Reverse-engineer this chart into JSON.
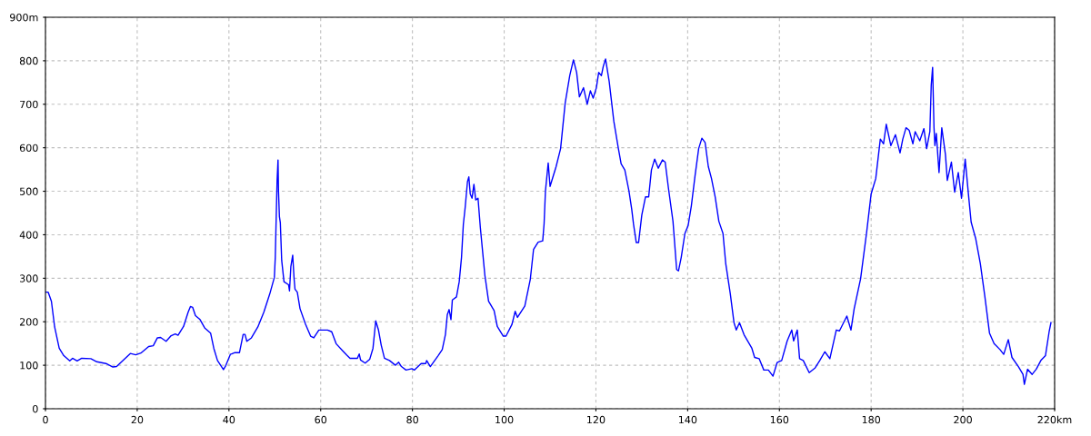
{
  "chart_data": {
    "type": "line",
    "x": [
      0.1,
      0.6,
      1.3,
      2.0,
      3.0,
      4.0,
      5.3,
      5.9,
      6.9,
      7.9,
      9.9,
      11.2,
      12.2,
      13.2,
      14.7,
      15.5,
      18.5,
      19.7,
      20.8,
      22.5,
      23.5,
      24.4,
      25.1,
      26.3,
      27.4,
      28.3,
      28.9,
      30.1,
      31.1,
      31.6,
      32.1,
      32.7,
      33.7,
      34.7,
      36.0,
      36.7,
      37.5,
      38.8,
      39.3,
      40.3,
      41.3,
      42.3,
      43.1,
      43.5,
      43.9,
      44.9,
      46.3,
      47.6,
      48.9,
      49.9,
      50.1,
      50.3,
      50.5,
      50.7,
      50.8,
      51.0,
      51.2,
      51.5,
      52.0,
      53.0,
      53.2,
      53.5,
      53.9,
      54.2,
      54.4,
      54.9,
      55.5,
      56.7,
      57.8,
      58.5,
      59.6,
      61.5,
      62.4,
      63.4,
      64.8,
      65.7,
      66.4,
      68.0,
      68.4,
      68.7,
      69.7,
      70.7,
      71.4,
      72.0,
      72.6,
      73.2,
      73.9,
      75.0,
      76.3,
      77.0,
      77.6,
      78.6,
      79.9,
      80.4,
      81.9,
      82.9,
      83.1,
      83.9,
      85.6,
      86.5,
      87.2,
      87.6,
      88.0,
      88.4,
      88.7,
      89.6,
      90.2,
      90.7,
      91.1,
      91.5,
      92.0,
      92.3,
      92.6,
      93.0,
      93.4,
      93.8,
      94.3,
      94.8,
      95.8,
      96.6,
      97.8,
      98.5,
      99.8,
      100.4,
      101.7,
      102.4,
      102.9,
      104.5,
      105.7,
      106.4,
      107.4,
      108.4,
      108.7,
      109.0,
      109.6,
      110.0,
      111.3,
      112.3,
      113.3,
      114.3,
      115.1,
      115.8,
      116.4,
      117.3,
      118.1,
      118.8,
      119.4,
      120.1,
      120.6,
      121.2,
      121.6,
      122.1,
      122.9,
      123.9,
      124.9,
      125.5,
      126.3,
      127.2,
      127.8,
      128.2,
      128.8,
      129.3,
      130.0,
      130.8,
      131.5,
      132.1,
      132.8,
      133.6,
      134.5,
      135.1,
      135.8,
      136.8,
      137.6,
      138.0,
      138.6,
      139.4,
      140.1,
      140.8,
      141.6,
      142.4,
      143.1,
      143.8,
      144.5,
      145.2,
      146.0,
      146.8,
      147.7,
      148.3,
      149.3,
      150.1,
      150.6,
      151.3,
      152.3,
      154.0,
      154.6,
      155.6,
      156.6,
      157.6,
      158.6,
      159.5,
      160.5,
      161.7,
      162.7,
      163.1,
      163.9,
      164.4,
      165.2,
      166.5,
      167.8,
      168.8,
      169.9,
      171.0,
      172.4,
      173.1,
      174.7,
      175.6,
      176.3,
      177.7,
      179.0,
      180.0,
      181.0,
      182.0,
      182.7,
      183.3,
      184.3,
      185.3,
      186.3,
      186.9,
      187.6,
      188.3,
      189.1,
      189.6,
      190.6,
      191.5,
      192.1,
      192.8,
      193.1,
      193.4,
      193.7,
      193.9,
      194.2,
      194.8,
      195.4,
      196.2,
      196.6,
      197.5,
      198.2,
      199.0,
      199.7,
      200.5,
      201.2,
      201.8,
      202.8,
      203.8,
      204.8,
      205.8,
      206.8,
      208.1,
      208.9,
      209.9,
      210.7,
      212.1,
      213.1,
      213.4,
      214.1,
      215.1,
      216.0,
      217.0,
      218.0,
      218.8,
      219.2
    ],
    "series": [
      {
        "color": "#0000ff",
        "values": [
          268,
          268,
          247,
          188,
          139,
          122,
          110,
          116,
          110,
          116,
          115,
          108,
          106,
          104,
          96,
          97,
          127,
          124,
          128,
          143,
          145,
          163,
          164,
          155,
          168,
          172,
          169,
          189,
          222,
          235,
          233,
          214,
          205,
          186,
          174,
          139,
          111,
          90,
          99,
          125,
          129,
          129,
          171,
          171,
          155,
          163,
          188,
          222,
          264,
          302,
          348,
          438,
          525,
          572,
          501,
          442,
          428,
          341,
          292,
          285,
          271,
          327,
          353,
          299,
          275,
          268,
          230,
          194,
          167,
          163,
          181,
          181,
          177,
          149,
          133,
          123,
          116,
          116,
          126,
          112,
          105,
          114,
          139,
          202,
          181,
          146,
          116,
          111,
          100,
          107,
          97,
          89,
          92,
          89,
          104,
          104,
          111,
          97,
          122,
          136,
          171,
          216,
          228,
          205,
          250,
          257,
          292,
          348,
          424,
          463,
          522,
          533,
          494,
          484,
          516,
          480,
          484,
          417,
          306,
          247,
          226,
          189,
          167,
          167,
          194,
          224,
          210,
          236,
          298,
          366,
          383,
          386,
          425,
          501,
          565,
          511,
          556,
          598,
          703,
          766,
          802,
          773,
          717,
          738,
          700,
          731,
          714,
          738,
          773,
          766,
          787,
          804,
          752,
          661,
          598,
          563,
          549,
          501,
          459,
          424,
          382,
          382,
          445,
          487,
          487,
          549,
          574,
          553,
          572,
          567,
          508,
          431,
          320,
          317,
          348,
          403,
          421,
          466,
          535,
          598,
          622,
          612,
          557,
          529,
          487,
          431,
          403,
          334,
          264,
          198,
          181,
          198,
          170,
          139,
          118,
          115,
          89,
          89,
          75,
          106,
          111,
          156,
          181,
          156,
          181,
          115,
          111,
          83,
          94,
          111,
          131,
          115,
          181,
          179,
          213,
          181,
          230,
          299,
          404,
          494,
          529,
          620,
          609,
          654,
          605,
          630,
          588,
          620,
          646,
          640,
          609,
          637,
          616,
          644,
          598,
          637,
          744,
          785,
          647,
          605,
          633,
          543,
          646,
          584,
          525,
          567,
          498,
          543,
          484,
          574,
          494,
          429,
          391,
          334,
          257,
          174,
          150,
          136,
          125,
          159,
          118,
          97,
          79,
          56,
          91,
          79,
          91,
          111,
          122,
          177,
          198
        ]
      }
    ],
    "xlim": [
      0,
      220
    ],
    "xticks": [
      0,
      20,
      40,
      60,
      80,
      100,
      120,
      140,
      160,
      180,
      200,
      {
        "value": 220,
        "label": "220km"
      }
    ],
    "ylim": [
      0,
      900
    ],
    "yticks": [
      0,
      100,
      200,
      300,
      400,
      500,
      600,
      700,
      800,
      {
        "value": 900,
        "label": "900m"
      }
    ],
    "grid": true
  }
}
